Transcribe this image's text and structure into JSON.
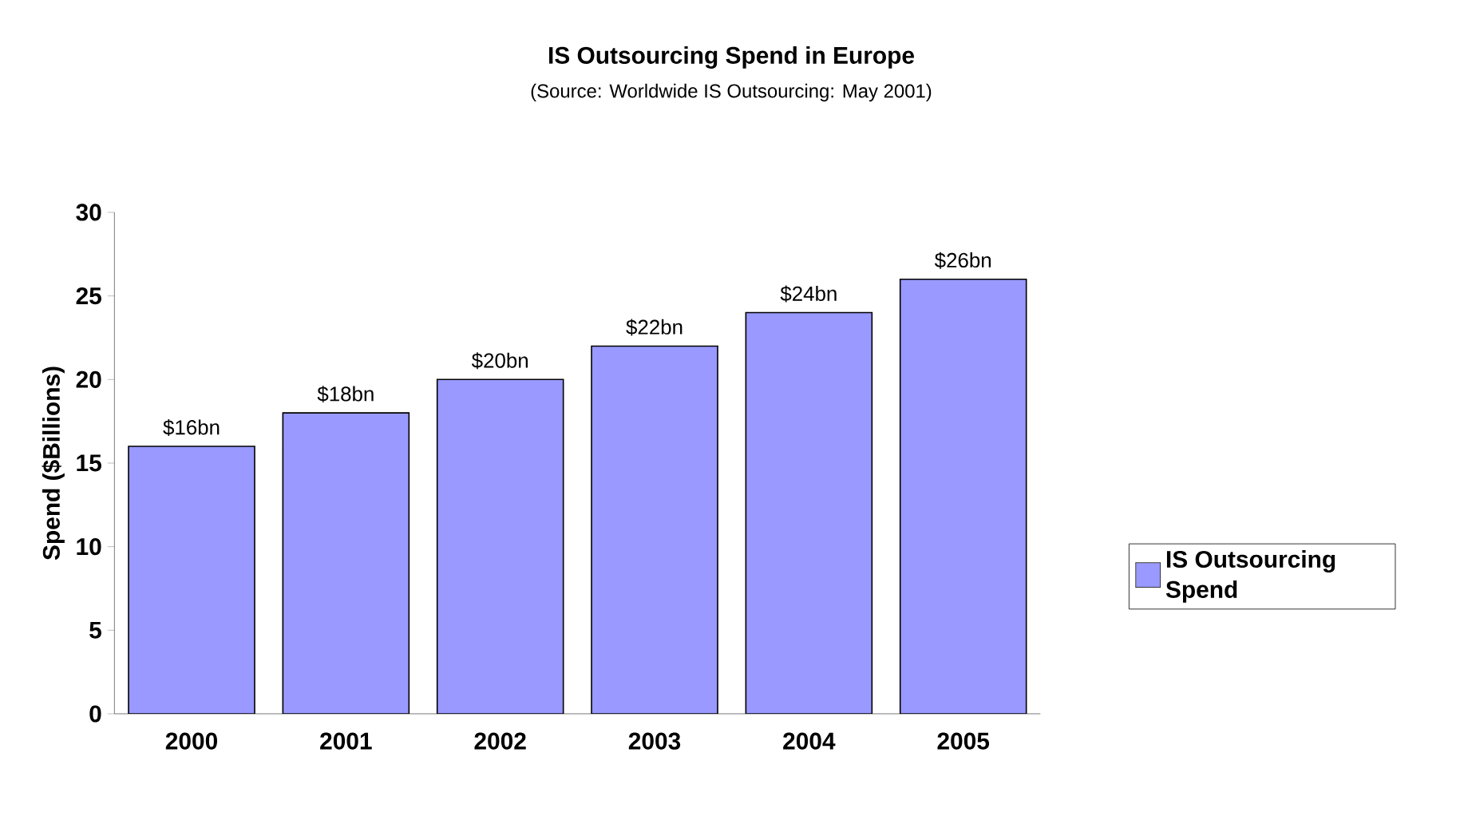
{
  "chart_data": {
    "type": "bar",
    "title": "IS Outsourcing Spend in Europe",
    "subtitle": "(Source: Worldwide IS Outsourcing: May 2001)",
    "ylabel": "Spend ($Billions)",
    "categories": [
      "2000",
      "2001",
      "2002",
      "2003",
      "2004",
      "2005"
    ],
    "series": [
      {
        "name": "IS Outsourcing Spend",
        "color": "#9999ff",
        "values": [
          16,
          18,
          20,
          22,
          24,
          26
        ],
        "value_labels": [
          "$16bn",
          "$18bn",
          "$20bn",
          "$22bn",
          "$24bn",
          "$26bn"
        ]
      }
    ],
    "ylim": [
      0,
      30
    ],
    "yticks": [
      0,
      5,
      10,
      15,
      20,
      25,
      30
    ],
    "grid": false,
    "legend": "right"
  }
}
